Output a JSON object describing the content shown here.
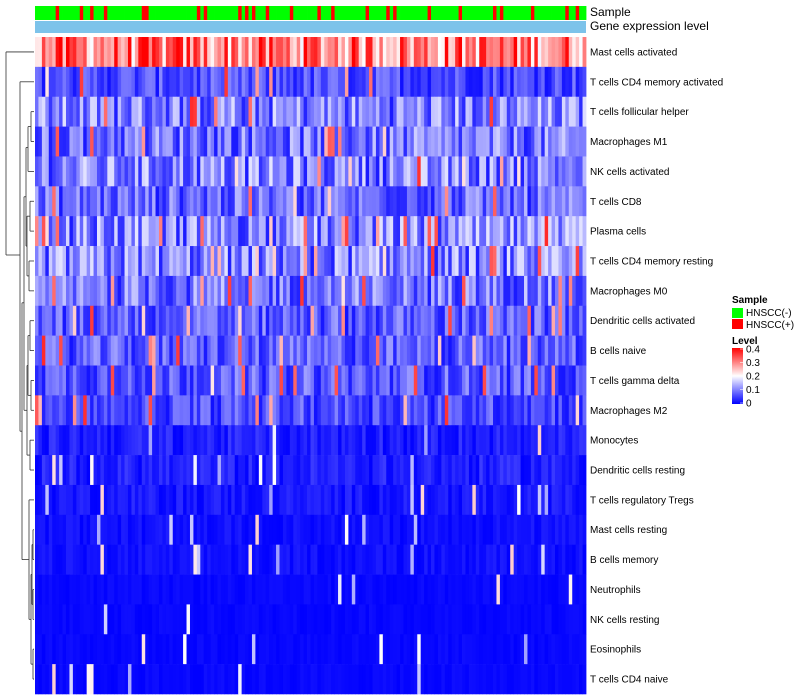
{
  "chart_data": {
    "type": "heatmap",
    "annotation_tracks": [
      "Sample",
      "Gene expression level"
    ],
    "rows": [
      {
        "name": "Mast cells activated",
        "mean": 0.3
      },
      {
        "name": "T cells CD4 memory activated",
        "mean": 0.06
      },
      {
        "name": "T cells follicular helper",
        "mean": 0.1
      },
      {
        "name": "Macrophages M1",
        "mean": 0.09
      },
      {
        "name": "NK cells activated",
        "mean": 0.1
      },
      {
        "name": "T cells CD8",
        "mean": 0.08
      },
      {
        "name": "Plasma cells",
        "mean": 0.1
      },
      {
        "name": "T cells CD4 memory resting",
        "mean": 0.1
      },
      {
        "name": "Macrophages M0",
        "mean": 0.09
      },
      {
        "name": "Dendritic cells activated",
        "mean": 0.07
      },
      {
        "name": "B cells naive",
        "mean": 0.07
      },
      {
        "name": "T cells gamma delta",
        "mean": 0.07
      },
      {
        "name": "Macrophages M2",
        "mean": 0.06
      },
      {
        "name": "Monocytes",
        "mean": 0.04
      },
      {
        "name": "Dendritic cells resting",
        "mean": 0.04
      },
      {
        "name": "T cells regulatory  Tregs",
        "mean": 0.03
      },
      {
        "name": "Mast cells resting",
        "mean": 0.02
      },
      {
        "name": "B cells memory",
        "mean": 0.02
      },
      {
        "name": "Neutrophils",
        "mean": 0.01
      },
      {
        "name": "NK cells resting",
        "mean": 0.01
      },
      {
        "name": "Eosinophils",
        "mean": 0.01
      },
      {
        "name": "T cells CD4 naive",
        "mean": 0.01
      }
    ],
    "n_samples": 160,
    "color_scale": {
      "min": 0,
      "max": 0.4,
      "colors": [
        "#0000ff",
        "#ffffff",
        "#ff0000"
      ],
      "ticks": [
        "0.4",
        "0.3",
        "0.2",
        "0.1",
        "0"
      ]
    },
    "sample_groups": [
      {
        "label": "HNSCC(-)",
        "color": "#00ff00"
      },
      {
        "label": "HNSCC(+)",
        "color": "#ff0000"
      }
    ],
    "gene_expression_color": "#7dc3ea"
  },
  "legend": {
    "sample_title": "Sample",
    "level_title": "Level"
  }
}
